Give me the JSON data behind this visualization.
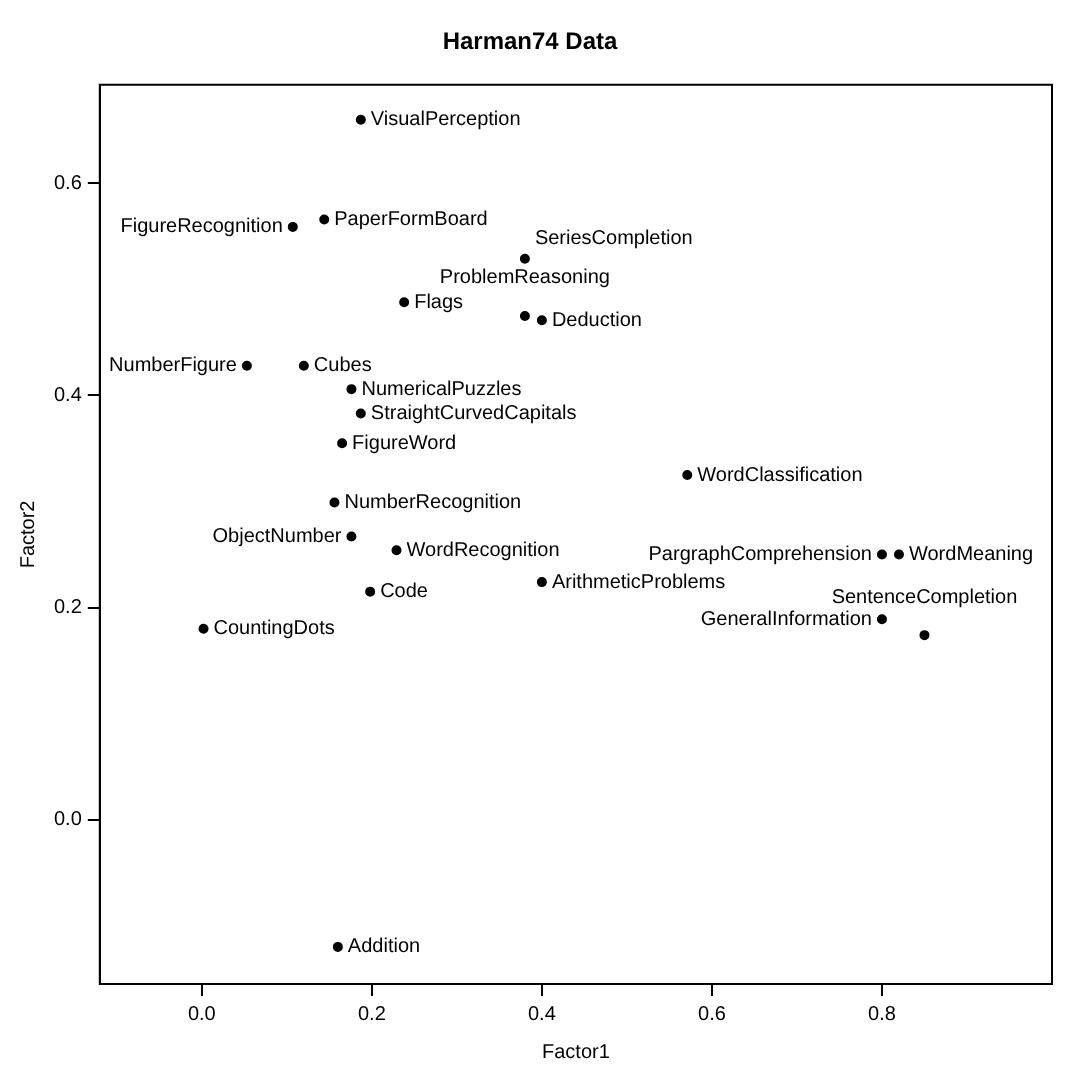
{
  "chart_data": {
    "type": "scatter",
    "title": "Harman74 Data",
    "xlabel": "Factor1",
    "ylabel": "Factor2",
    "marker": "circle",
    "grid": false,
    "legend": false,
    "xlim": [
      -0.12,
      1.0
    ],
    "ylim": [
      -0.155,
      0.693
    ],
    "xticks": [
      {
        "value": 0,
        "label": "0.0"
      },
      0.2,
      0.4,
      0.6,
      0.8
    ],
    "yticks": [
      {
        "value": 0,
        "label": "0.0"
      },
      0.2,
      0.4,
      0.6
    ],
    "series": [
      {
        "color": "#000000",
        "x": [
          0.187,
          0.12,
          0.144,
          0.238,
          0.8,
          0.8,
          0.85,
          0.571,
          0.82,
          0.16,
          0.198,
          0.002,
          0.187,
          0.229,
          0.156,
          0.107,
          0.176,
          0.053,
          0.165,
          0.4,
          0.176,
          0.38,
          0.38,
          0.4
        ],
        "values": [
          0.66,
          0.428,
          0.566,
          0.488,
          0.189,
          0.25,
          0.174,
          0.325,
          0.25,
          -0.12,
          0.215,
          0.18,
          0.383,
          0.254,
          0.299,
          0.559,
          0.267,
          0.428,
          0.355,
          0.471,
          0.406,
          0.475,
          0.529,
          0.224
        ],
        "value_labels": [
          "VisualPerception",
          "Cubes",
          "PaperFormBoard",
          "Flags",
          "GeneralInformation",
          "PargraphComprehension",
          "SentenceCompletion",
          "WordClassification",
          "WordMeaning",
          "Addition",
          "Code",
          "CountingDots",
          "StraightCurvedCapitals",
          "WordRecognition",
          "NumberRecognition",
          "FigureRecognition",
          "ObjectNumber",
          "NumberFigure",
          "FigureWord",
          "Deduction",
          "NumericalPuzzles",
          "ProblemReasoning",
          "SeriesCompletion",
          "ArithmeticProblems"
        ]
      }
    ]
  }
}
